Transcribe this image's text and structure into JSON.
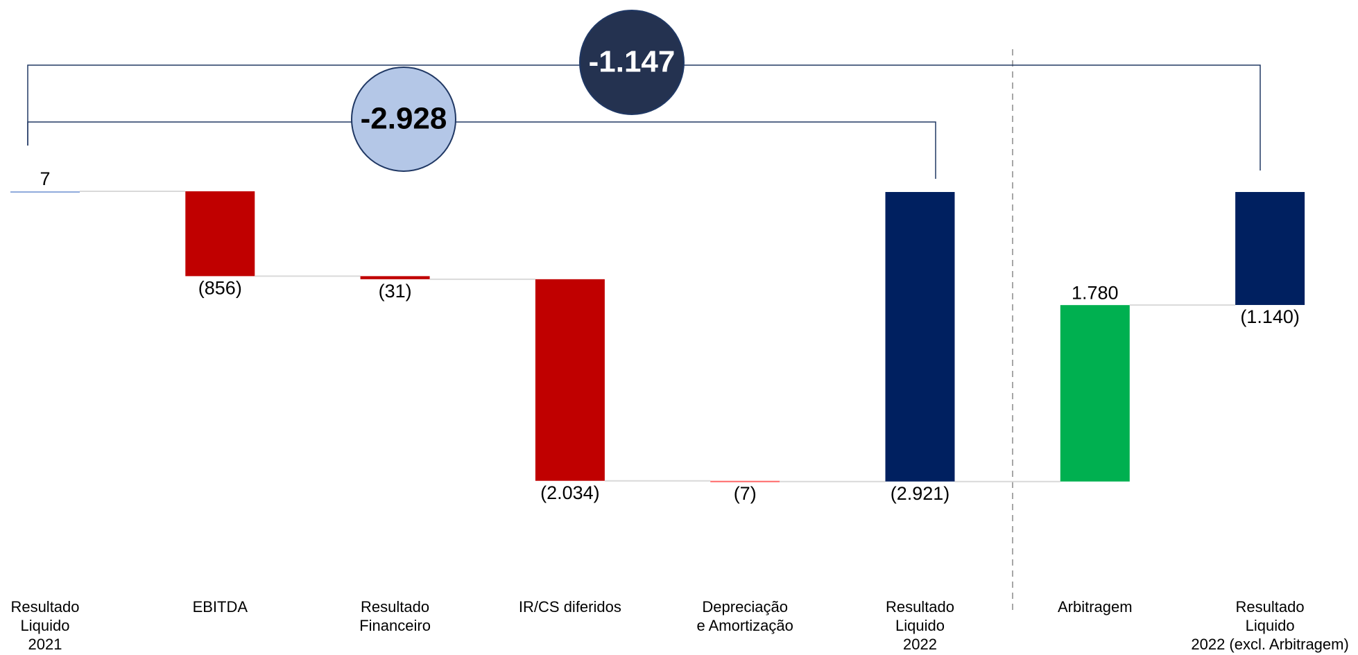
{
  "chart_data": {
    "type": "waterfall",
    "categories": [
      "Resultado\nLiquido\n2021",
      "EBITDA",
      "Resultado\nFinanceiro",
      "IR/CS diferidos",
      "Depreciação\ne Amortização",
      "Resultado\nLiquido\n2022",
      "Arbitragem",
      "Resultado\nLiquido\n2022 (excl. Arbitragem)"
    ],
    "values": [
      7,
      -856,
      -31,
      -2034,
      -7,
      -2921,
      1780,
      -1140
    ],
    "value_labels": [
      "7",
      "(856)",
      "(31)",
      "(2.034)",
      "(7)",
      "(2.921)",
      "1.780",
      "(1.140)"
    ],
    "measure": [
      "absolute",
      "relative",
      "relative",
      "relative",
      "relative",
      "total",
      "relative",
      "total"
    ],
    "colors": [
      "#8faadc",
      "#c00000",
      "#c00000",
      "#c00000",
      "#ff6666",
      "#002060",
      "#00b050",
      "#002060"
    ],
    "annotations": [
      {
        "text": "-2.928",
        "color": "#b4c7e7"
      },
      {
        "text": "-1.147",
        "color": "#243250"
      }
    ]
  }
}
